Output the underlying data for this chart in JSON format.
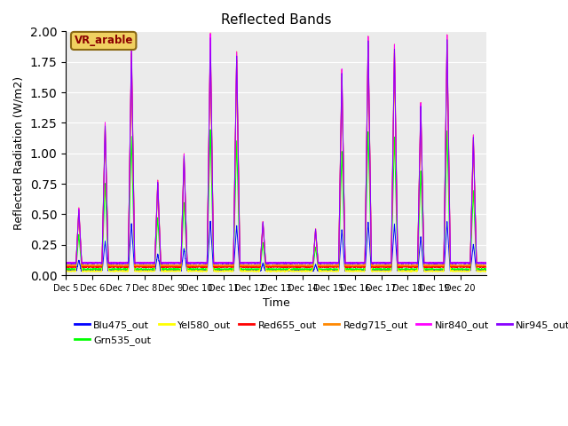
{
  "title": "Reflected Bands",
  "xlabel": "Time",
  "ylabel": "Reflected Radiation (W/m2)",
  "annotation_text": "VR_arable",
  "ylim": [
    0,
    2.0
  ],
  "background_color": "#ebebeb",
  "band_configs": {
    "Blu475_out": {
      "mult": 0.22,
      "base": 0.035,
      "color": "#0000ff"
    },
    "Grn535_out": {
      "mult": 0.6,
      "base": 0.045,
      "color": "#00ff00"
    },
    "Yel580_out": {
      "mult": 0.92,
      "base": 0.03,
      "color": "#ffff00"
    },
    "Red655_out": {
      "mult": 0.96,
      "base": 0.065,
      "color": "#ff0000"
    },
    "Redg715_out": {
      "mult": 1.0,
      "base": 0.075,
      "color": "#ff8800"
    },
    "Nir840_out": {
      "mult": 1.0,
      "base": 0.1,
      "color": "#ff00ff"
    },
    "Nir945_out": {
      "mult": 0.98,
      "base": 0.095,
      "color": "#8800ff"
    }
  },
  "day_peaks": [
    0.55,
    1.25,
    1.9,
    0.78,
    1.0,
    2.0,
    1.85,
    0.44,
    0.05,
    0.38,
    1.7,
    1.97,
    1.9,
    1.42,
    1.97,
    1.15
  ],
  "x_tick_labels": [
    "Dec 5",
    "Dec 6",
    "Dec 7",
    "Dec 8",
    "Dec 9",
    "Dec 10",
    "Dec 11",
    "Dec 12",
    "Dec 13",
    "Dec 14",
    "Dec 15",
    "Dec 16",
    "Dec 17",
    "Dec 18",
    "Dec 19",
    "Dec 20"
  ],
  "num_days": 16,
  "points_per_day": 288
}
